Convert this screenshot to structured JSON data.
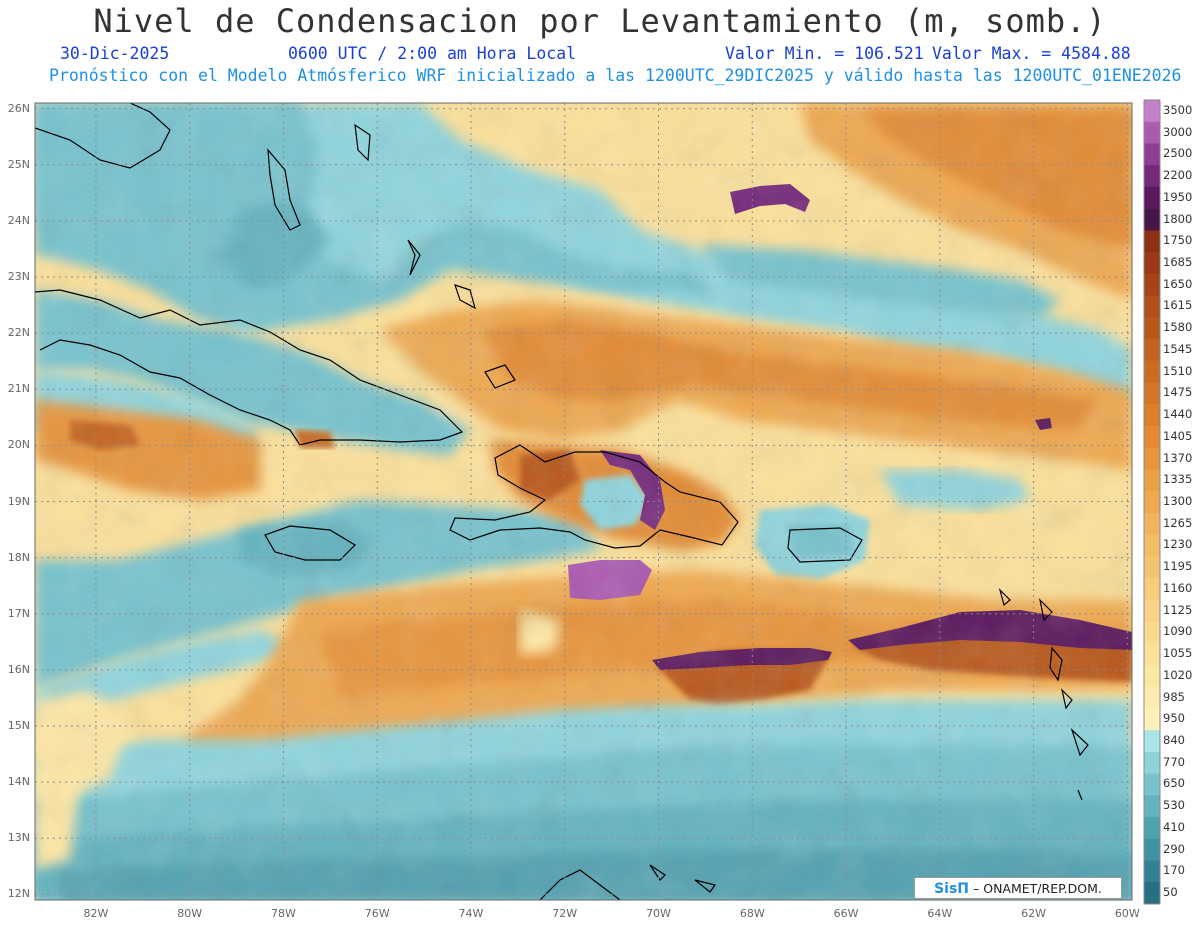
{
  "header": {
    "title": "Nivel de Condensacion por Levantamiento (m, somb.)",
    "date": "30-Dic-2025",
    "time": "0600 UTC / 2:00 am Hora Local",
    "min_label": "Valor Min. = 106.521",
    "max_label": "Valor Max. = 4584.88",
    "forecast_info": "Pronóstico con el Modelo Atmósferico WRF inicializado a las 1200UTC_29DIC2025 y válido hasta las  1200UTC_01ENE2026"
  },
  "axes": {
    "lat_labels": [
      "26N",
      "25N",
      "24N",
      "23N",
      "22N",
      "21N",
      "20N",
      "19N",
      "18N",
      "17N",
      "16N",
      "15N",
      "14N",
      "13N",
      "12N"
    ],
    "lon_labels": [
      "82W",
      "80W",
      "78W",
      "76W",
      "74W",
      "72W",
      "70W",
      "68W",
      "66W",
      "64W",
      "62W",
      "60W"
    ]
  },
  "colorbar": {
    "labels": [
      "3500",
      "3000",
      "2500",
      "2200",
      "1950",
      "1800",
      "1750",
      "1685",
      "1650",
      "1615",
      "1580",
      "1545",
      "1510",
      "1475",
      "1440",
      "1405",
      "1370",
      "1335",
      "1300",
      "1265",
      "1230",
      "1195",
      "1160",
      "1125",
      "1090",
      "1055",
      "1020",
      "985",
      "950",
      "840",
      "770",
      "650",
      "530",
      "410",
      "290",
      "170",
      "50"
    ],
    "colors": [
      "#c47fc8",
      "#aa5aaf",
      "#8e3f95",
      "#74287a",
      "#5c1a5e",
      "#481548",
      "#8e2f14",
      "#9a3a16",
      "#a64418",
      "#b04f1b",
      "#b9581d",
      "#c4631f",
      "#cc6c22",
      "#d47628",
      "#dc802e",
      "#e28b34",
      "#e7953d",
      "#eb9f47",
      "#eea951",
      "#f1b35c",
      "#f3bc66",
      "#f5c470",
      "#f7cc7b",
      "#f9d385",
      "#fada90",
      "#fbe09a",
      "#fce6a4",
      "#fdebae",
      "#fef0b8",
      "#a8e4ea",
      "#8fd4dc",
      "#77c2cd",
      "#64b2bf",
      "#52a1b1",
      "#4190a2",
      "#338094",
      "#266f84"
    ]
  },
  "map": {
    "lon_range": [
      -83.3,
      -59.9
    ],
    "lat_range": [
      11.9,
      26.1
    ]
  },
  "credit": {
    "logo": "SisΠ",
    "text": "– ONAMET/REP.DOM."
  }
}
